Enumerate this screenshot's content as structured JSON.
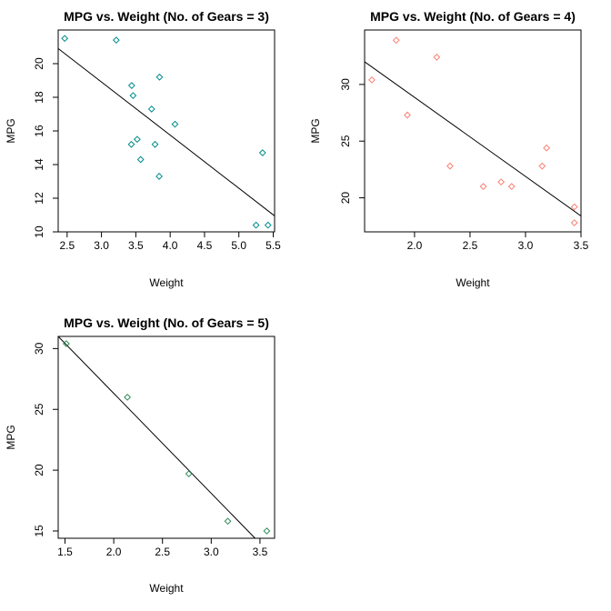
{
  "chart_data": [
    {
      "type": "scatter",
      "title": "MPG vs. Weight (No. of Gears = 3)",
      "xlabel": "Weight",
      "ylabel": "MPG",
      "xlim": [
        2.37,
        5.52
      ],
      "ylim": [
        10.0,
        22.0
      ],
      "xticks": [
        2.5,
        3.0,
        3.5,
        4.0,
        4.5,
        5.0,
        5.5
      ],
      "xtick_labels": [
        "2.5",
        "3.0",
        "3.5",
        "4.0",
        "4.5",
        "5.0",
        "5.5"
      ],
      "yticks": [
        10,
        12,
        14,
        16,
        18,
        20
      ],
      "ytick_labels": [
        "10",
        "12",
        "14",
        "16",
        "18",
        "20"
      ],
      "point_color": "#008B8B",
      "x": [
        2.465,
        3.215,
        3.44,
        3.46,
        3.435,
        3.52,
        3.57,
        3.73,
        3.78,
        3.845,
        3.84,
        4.07,
        5.25,
        5.345,
        5.424
      ],
      "y": [
        21.5,
        21.4,
        18.7,
        18.1,
        15.2,
        15.5,
        14.3,
        17.3,
        15.2,
        19.2,
        13.3,
        16.4,
        10.4,
        14.7,
        10.4
      ],
      "fit": {
        "x": [
          2.37,
          5.52
        ],
        "y": [
          20.9,
          10.95
        ]
      },
      "grid": false,
      "legend": "none"
    },
    {
      "type": "scatter",
      "title": "MPG vs. Weight (No. of Gears = 4)",
      "xlabel": "Weight",
      "ylabel": "MPG",
      "xlim": [
        1.55,
        3.5
      ],
      "ylim": [
        17.0,
        34.8
      ],
      "xticks": [
        2.0,
        2.5,
        3.0,
        3.5
      ],
      "xtick_labels": [
        "2.0",
        "2.5",
        "3.0",
        "3.5"
      ],
      "yticks": [
        20,
        25,
        30
      ],
      "ytick_labels": [
        "20",
        "25",
        "30"
      ],
      "point_color": "#FA8072",
      "x": [
        1.615,
        1.835,
        1.935,
        2.2,
        2.32,
        2.62,
        2.78,
        2.875,
        3.15,
        3.19,
        3.44,
        3.44
      ],
      "y": [
        30.4,
        33.9,
        27.3,
        32.4,
        22.8,
        21.0,
        21.4,
        21.0,
        22.8,
        24.4,
        19.2,
        17.8
      ],
      "fit": {
        "x": [
          1.55,
          3.5
        ],
        "y": [
          32.0,
          18.4
        ]
      },
      "grid": false,
      "legend": "none"
    },
    {
      "type": "scatter",
      "title": "MPG vs. Weight (No. of Gears = 5)",
      "xlabel": "Weight",
      "ylabel": "MPG",
      "xlim": [
        1.43,
        3.65
      ],
      "ylim": [
        14.4,
        31.0
      ],
      "xticks": [
        1.5,
        2.0,
        2.5,
        3.0,
        3.5
      ],
      "xtick_labels": [
        "1.5",
        "2.0",
        "2.5",
        "3.0",
        "3.5"
      ],
      "yticks": [
        15,
        20,
        25,
        30
      ],
      "ytick_labels": [
        "15",
        "20",
        "25",
        "30"
      ],
      "point_color": "#2E8B57",
      "x": [
        1.513,
        2.14,
        2.77,
        3.17,
        3.57
      ],
      "y": [
        30.4,
        26.0,
        19.7,
        15.8,
        15.0
      ],
      "fit": {
        "x": [
          1.43,
          3.45
        ],
        "y": [
          31.0,
          14.4
        ]
      },
      "grid": false,
      "legend": "none"
    }
  ]
}
